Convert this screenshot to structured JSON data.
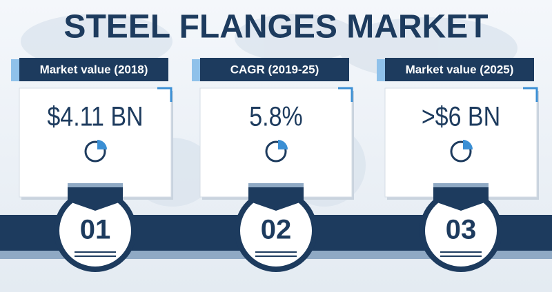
{
  "title": "STEEL FLANGES MARKET",
  "cards": [
    {
      "label": "Market value (2018)",
      "value": "$4.11 BN",
      "number": "01"
    },
    {
      "label": "CAGR (2019-25)",
      "value": "5.8%",
      "number": "02"
    },
    {
      "label": "Market value (2025)",
      "value": ">$6 BN",
      "number": "03"
    }
  ]
}
